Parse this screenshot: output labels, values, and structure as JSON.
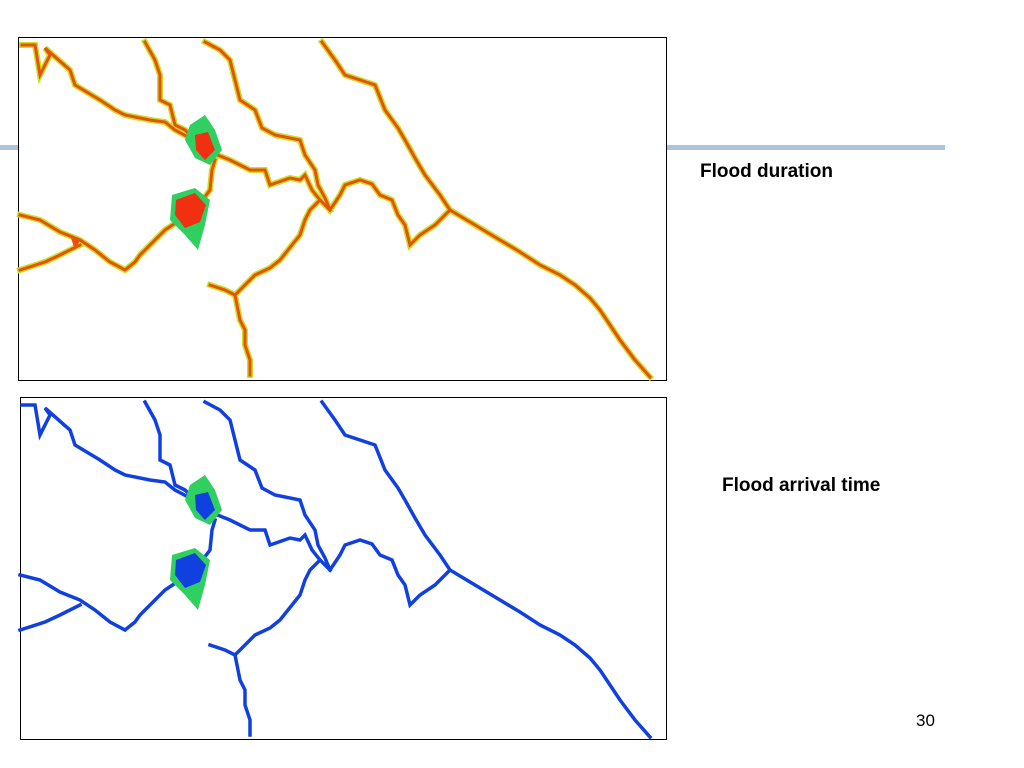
{
  "slide": {
    "panels": [
      {
        "label": "Flood duration"
      },
      {
        "label": "Flood arrival time"
      }
    ],
    "page_number": 30
  }
}
